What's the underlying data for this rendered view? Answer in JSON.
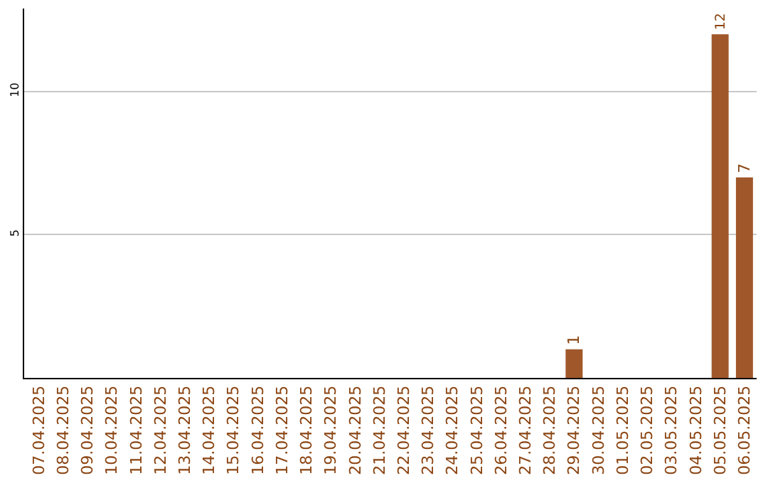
{
  "chart_data": {
    "type": "bar",
    "categories": [
      "07.04.2025",
      "08.04.2025",
      "09.04.2025",
      "10.04.2025",
      "11.04.2025",
      "12.04.2025",
      "13.04.2025",
      "14.04.2025",
      "15.04.2025",
      "16.04.2025",
      "17.04.2025",
      "18.04.2025",
      "19.04.2025",
      "20.04.2025",
      "21.04.2025",
      "22.04.2025",
      "23.04.2025",
      "24.04.2025",
      "25.04.2025",
      "26.04.2025",
      "27.04.2025",
      "28.04.2025",
      "29.04.2025",
      "30.04.2025",
      "01.05.2025",
      "02.05.2025",
      "03.05.2025",
      "04.05.2025",
      "05.05.2025",
      "06.05.2025"
    ],
    "values": [
      0,
      0,
      0,
      0,
      0,
      0,
      0,
      0,
      0,
      0,
      0,
      0,
      0,
      0,
      0,
      0,
      0,
      0,
      0,
      0,
      0,
      0,
      1,
      0,
      0,
      0,
      0,
      0,
      12,
      7
    ],
    "value_labels": [
      null,
      null,
      null,
      null,
      null,
      null,
      null,
      null,
      null,
      null,
      null,
      null,
      null,
      null,
      null,
      null,
      null,
      null,
      null,
      null,
      null,
      null,
      "1",
      null,
      null,
      null,
      null,
      null,
      "12",
      "7"
    ],
    "color": "#a0582a",
    "ylim": [
      0,
      12.9
    ],
    "yticks": [
      5,
      10
    ],
    "grid": "y",
    "legend": false
  }
}
